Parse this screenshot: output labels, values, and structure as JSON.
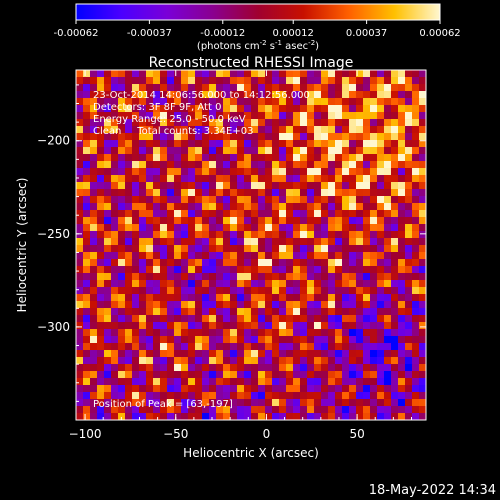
{
  "colorbar": {
    "tick_labels": [
      "-0.00062",
      "-0.00037",
      "-0.00012",
      "0.00012",
      "0.00037",
      "0.00062"
    ],
    "tick_values": [
      -0.00062,
      -0.00037,
      -0.00012,
      0.00012,
      0.00037,
      0.00062
    ],
    "units_main": "(photons cm",
    "units_exp1": "-2",
    "units_mid1": " s",
    "units_exp2": "-1",
    "units_mid2": " asec",
    "units_exp3": "-2",
    "units_end": ")",
    "stops": [
      "#0000ff",
      "#4b00ff",
      "#7a00d8",
      "#8a0090",
      "#a00030",
      "#c81000",
      "#ff6000",
      "#ffc000",
      "#fff7d0"
    ]
  },
  "chart_data": {
    "type": "heatmap",
    "title": "Reconstructed RHESSI Image",
    "xlabel": "Heliocentric X (arcsec)",
    "ylabel": "Heliocentric Y (arcsec)",
    "xlim": [
      -105,
      88
    ],
    "ylim": [
      -350,
      -162
    ],
    "x_ticks": [
      -100,
      -50,
      0,
      50
    ],
    "x_tick_labels": [
      "−100",
      "−50",
      "0",
      "50"
    ],
    "y_ticks": [
      -200,
      -250,
      -300
    ],
    "y_tick_labels": [
      "−200",
      "−250",
      "−300"
    ],
    "grid": false,
    "peak": {
      "x": 63,
      "y": -197
    },
    "annotations": [
      "23-Oct-2014 14:06:56.000 to 14:12:56.000",
      "Detectors: 3F 8F 9F, Att 0",
      "Energy Range: 25.0 - 50.0 keV",
      "Clean     Total counts: 3.34E+03"
    ],
    "peak_label": "Position of Peak = [63,-197]"
  },
  "footer": {
    "timestamp": "18-May-2022 14:34"
  }
}
